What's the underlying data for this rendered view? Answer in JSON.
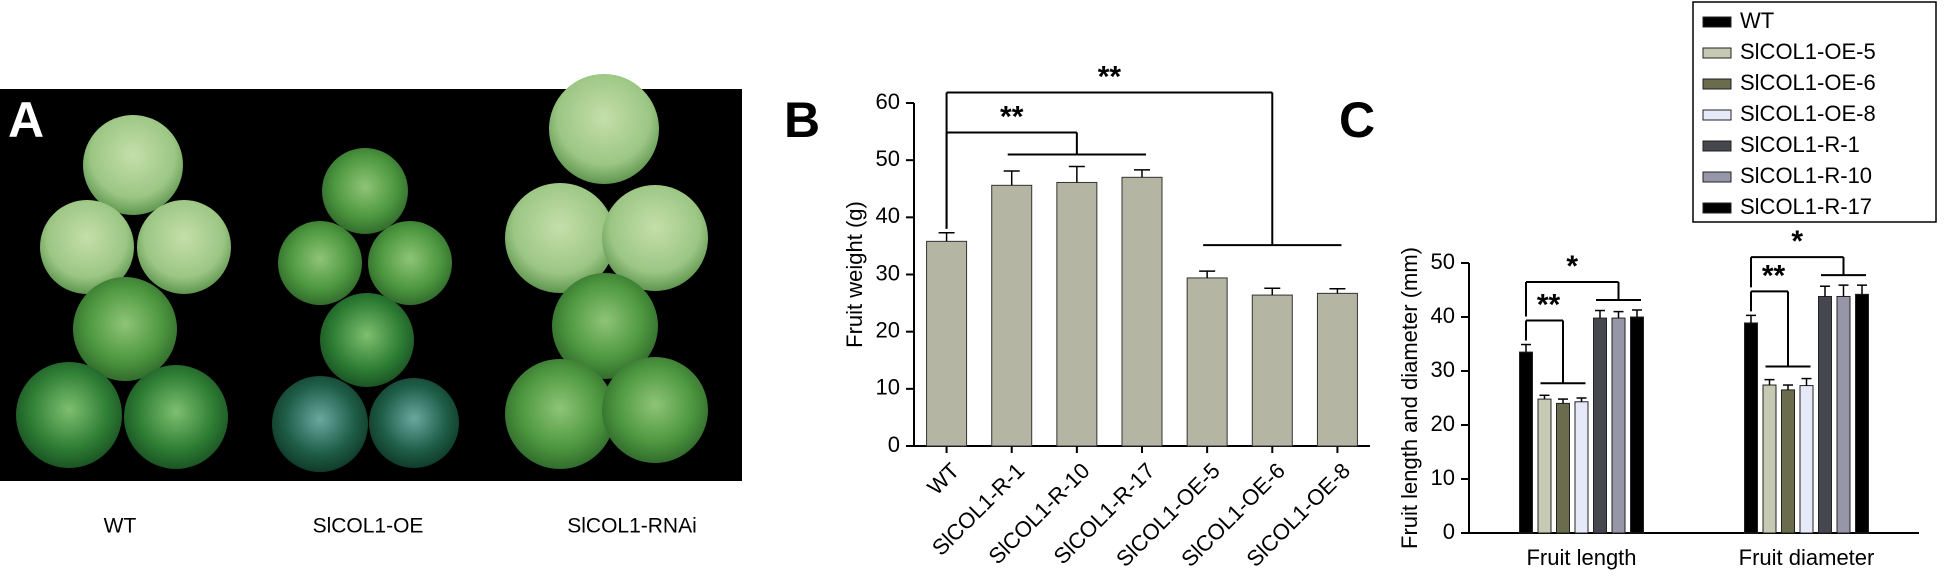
{
  "panel_a": {
    "label": "A",
    "captions": [
      "WT",
      "SlCOL1-OE",
      "SlCOL1-RNAi"
    ]
  },
  "chart_data": [
    {
      "type": "bar",
      "panel": "B",
      "ylabel": "Fruit weight (g)",
      "categories": [
        "WT",
        "SlCOL1-R-1",
        "SlCOL1-R-10",
        "SlCOL1-R-17",
        "SlCOL1-OE-5",
        "SlCOL1-OE-6",
        "SlCOL1-OE-8"
      ],
      "values": [
        35.8,
        45.6,
        46.1,
        47.0,
        29.4,
        26.4,
        26.7
      ],
      "errors": [
        1.5,
        2.5,
        2.8,
        1.3,
        1.2,
        1.2,
        0.8
      ],
      "color": "#b5b5a3",
      "ylim": [
        0,
        60
      ],
      "yticks": [
        0,
        10,
        20,
        30,
        40,
        50,
        60
      ],
      "annotations": [
        "**",
        "**"
      ]
    },
    {
      "type": "grouped_bar",
      "panel": "C",
      "ylabel": "Fruit length and diameter (mm)",
      "categories": [
        "Fruit length",
        "Fruit diameter"
      ],
      "series": [
        {
          "name": "WT",
          "color": "#000000",
          "values": [
            33.5,
            38.9
          ],
          "errors": [
            1.4,
            1.4
          ]
        },
        {
          "name": "SlCOL1-OE-5",
          "color": "#c6c9b3",
          "values": [
            24.8,
            27.4
          ],
          "errors": [
            0.7,
            1.0
          ]
        },
        {
          "name": "SlCOL1-OE-6",
          "color": "#6b6b4e",
          "values": [
            24.0,
            26.5
          ],
          "errors": [
            0.8,
            0.9
          ]
        },
        {
          "name": "SlCOL1-OE-8",
          "color": "#e6e9f8",
          "values": [
            24.3,
            27.3
          ],
          "errors": [
            0.7,
            1.3
          ]
        },
        {
          "name": "SlCOL1-R-1",
          "color": "#46464f",
          "values": [
            39.8,
            43.8
          ],
          "errors": [
            1.4,
            1.9
          ]
        },
        {
          "name": "SlCOL1-R-10",
          "color": "#9696a8",
          "values": [
            39.8,
            43.8
          ],
          "errors": [
            1.2,
            2.1
          ]
        },
        {
          "name": "SlCOL1-R-17",
          "color": "#000000",
          "values": [
            40.0,
            44.2
          ],
          "errors": [
            1.3,
            1.7
          ]
        }
      ],
      "ylim": [
        0,
        50
      ],
      "yticks": [
        0,
        10,
        20,
        30,
        40,
        50
      ],
      "annotations": [
        "**",
        "*"
      ],
      "legend": "top-right"
    }
  ]
}
